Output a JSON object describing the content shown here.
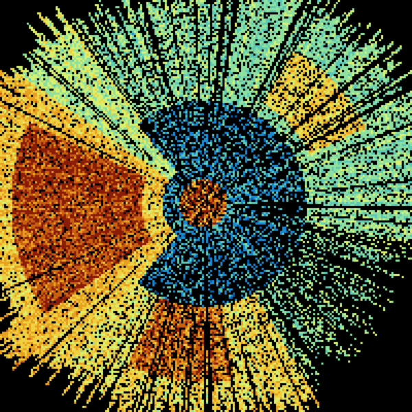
{
  "image": {
    "kind": "radar-sweep-field",
    "background": "#000000",
    "palette": [
      "#0060b0",
      "#1a8ad0",
      "#5cc8b8",
      "#8ee0a0",
      "#d8f070",
      "#f0d040",
      "#e8a020",
      "#c86010",
      "#8a1c08"
    ]
  }
}
